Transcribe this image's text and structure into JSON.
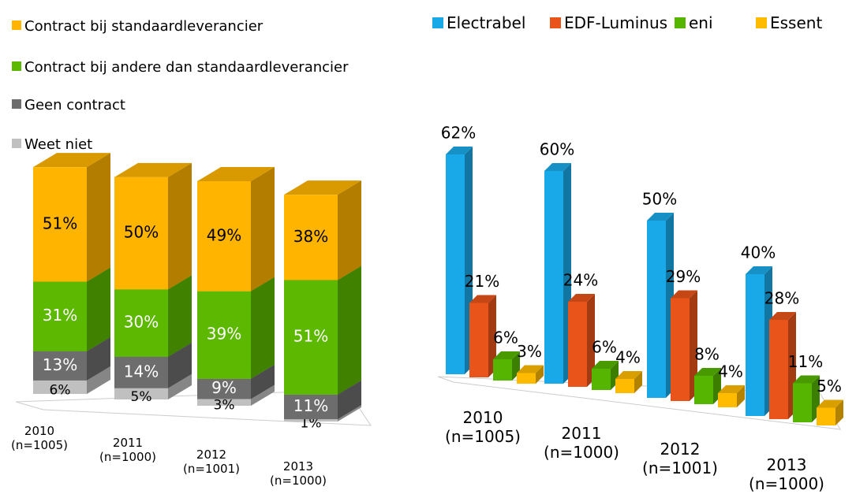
{
  "chart_data": [
    {
      "type": "stacked-bar-3d",
      "categories": [
        "2010\n(n=1005)",
        "2011\n(n=1000)",
        "2012\n(n=1001)",
        "2013\n(n=1000)"
      ],
      "series": [
        {
          "name": "Weet niet",
          "color": "#c0c0c0",
          "values": [
            6,
            5,
            3,
            1
          ],
          "value_labels": [
            "6%",
            "5%",
            "3%",
            "1%"
          ]
        },
        {
          "name": "Geen contract",
          "color": "#6d6d6d",
          "values": [
            13,
            14,
            9,
            11
          ],
          "value_labels": [
            "13%",
            "14%",
            "9%",
            "11%"
          ]
        },
        {
          "name": "Contract bij andere dan standaardleverancier",
          "color": "#5cb800",
          "values": [
            31,
            30,
            39,
            51
          ],
          "value_labels": [
            "31%",
            "30%",
            "39%",
            "51%"
          ]
        },
        {
          "name": "Contract bij standaardleverancier",
          "color": "#ffb400",
          "values": [
            51,
            50,
            49,
            38
          ],
          "value_labels": [
            "51%",
            "50%",
            "49%",
            "38%"
          ]
        }
      ]
    },
    {
      "type": "grouped-bar-3d",
      "categories": [
        "2010\n(n=1005)",
        "2011\n(n=1000)",
        "2012\n(n=1001)",
        "2013\n(n=1000)"
      ],
      "series": [
        {
          "name": "Electrabel",
          "color": "#1aa9e8",
          "values": [
            62,
            60,
            50,
            40
          ],
          "value_labels": [
            "62%",
            "60%",
            "50%",
            "40%"
          ]
        },
        {
          "name": "EDF-Luminus",
          "color": "#e8541a",
          "values": [
            21,
            24,
            29,
            28
          ],
          "value_labels": [
            "21%",
            "24%",
            "29%",
            "28%"
          ]
        },
        {
          "name": "eni",
          "color": "#56b500",
          "values": [
            6,
            6,
            8,
            11
          ],
          "value_labels": [
            "6%",
            "6%",
            "8%",
            "11%"
          ]
        },
        {
          "name": "Essent",
          "color": "#ffbb00",
          "values": [
            3,
            4,
            4,
            5
          ],
          "value_labels": [
            "3%",
            "4%",
            "4%",
            "5%"
          ]
        }
      ]
    }
  ]
}
